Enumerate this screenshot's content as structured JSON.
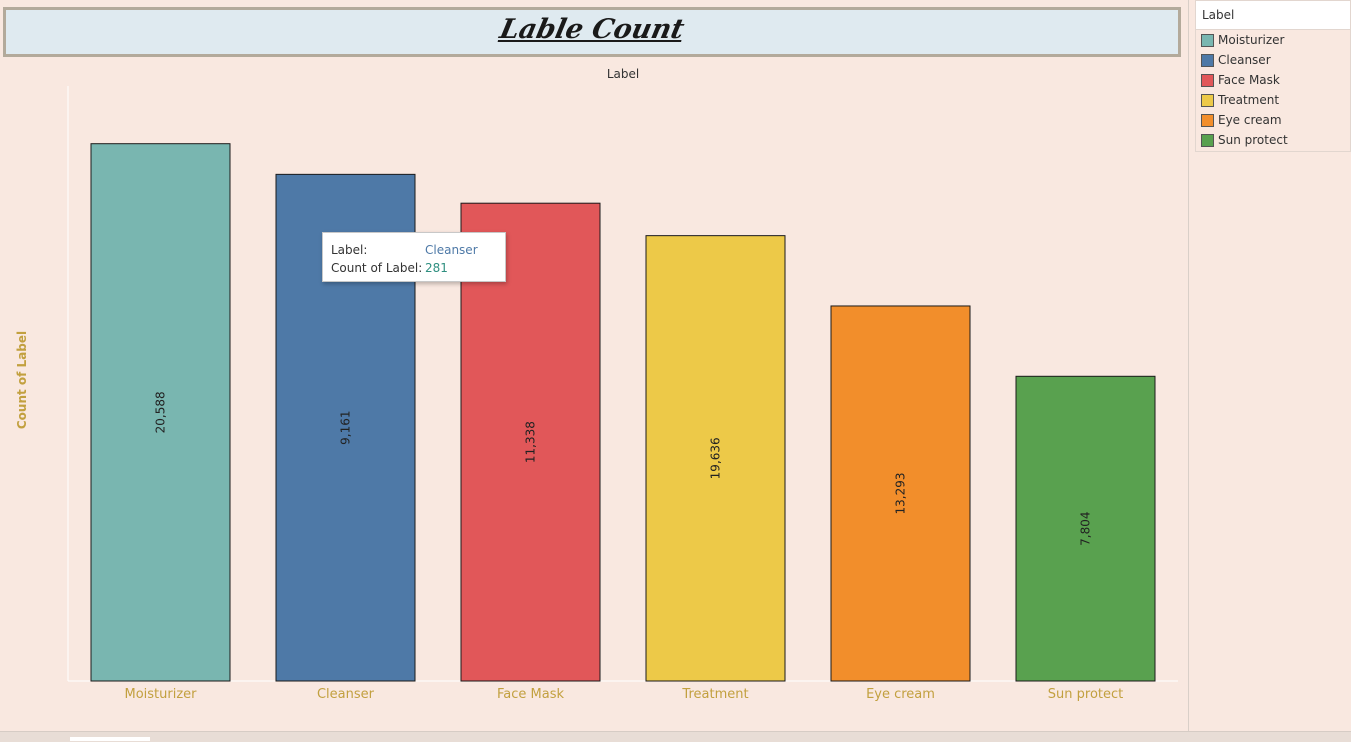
{
  "dashboard": {
    "title": "Lable Count",
    "header_label": "Label",
    "y_axis_label": "Count of Label"
  },
  "legend": {
    "title": "Label",
    "items": [
      {
        "label": "Moisturizer",
        "color": "#79b6b0"
      },
      {
        "label": "Cleanser",
        "color": "#4e79a7"
      },
      {
        "label": "Face Mask",
        "color": "#e15759"
      },
      {
        "label": "Treatment",
        "color": "#edc948"
      },
      {
        "label": "Eye cream",
        "color": "#f28e2b"
      },
      {
        "label": "Sun protect",
        "color": "#59a14f"
      }
    ]
  },
  "tooltip": {
    "label_key": "Label:",
    "label_value": "Cleanser",
    "count_key": "Count of Label:",
    "count_value": "281"
  },
  "chart_data": {
    "type": "bar",
    "categories": [
      "Moisturizer",
      "Cleanser",
      "Face Mask",
      "Treatment",
      "Eye cream",
      "Sun protect"
    ],
    "values": [
      298,
      281,
      265,
      247,
      208,
      169
    ],
    "data_labels": [
      "20,588",
      "9,161",
      "11,338",
      "19,636",
      "13,293",
      "7,804"
    ],
    "colors": [
      "#79b6b0",
      "#4e79a7",
      "#e15759",
      "#edc948",
      "#f28e2b",
      "#59a14f"
    ],
    "ylabel": "Count of Label",
    "xlabel": "Label",
    "ylim": [
      0,
      330
    ],
    "grid": false
  }
}
